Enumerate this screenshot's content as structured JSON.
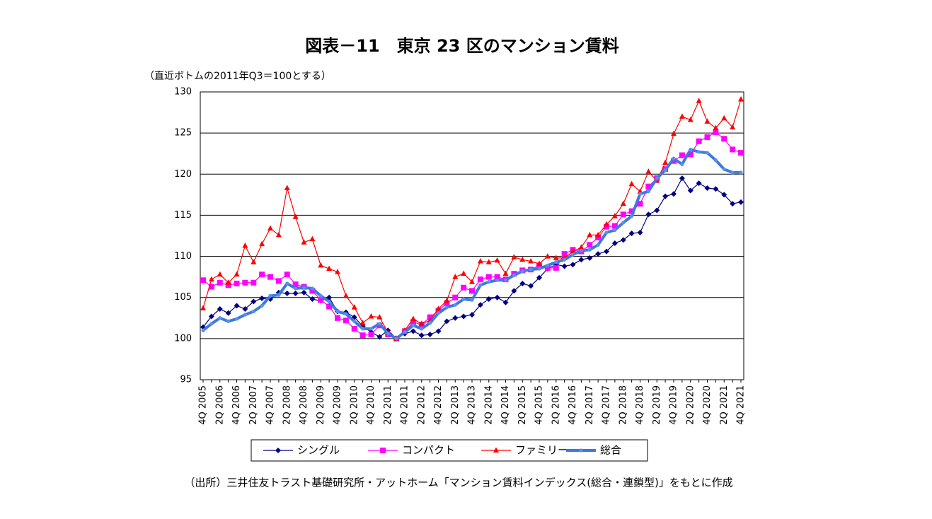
{
  "chart_data": {
    "type": "line",
    "title": "図表－11　東京 23 区のマンション賃料",
    "subtitle": "（直近ボトムの2011年Q3＝100とする）",
    "note": "（出所）三井住友トラスト基礎研究所・アットホーム「マンション賃料インデックス(総合・連鎖型)」をもとに作成",
    "categories": [
      "4Q 2005",
      null,
      "2Q 2006",
      null,
      "4Q 2006",
      null,
      "2Q 2007",
      null,
      "4Q 2007",
      null,
      "2Q 2008",
      null,
      "4Q 2008",
      null,
      "2Q 2009",
      null,
      "4Q 2009",
      null,
      "2Q 2010",
      null,
      "4Q 2010",
      null,
      "2Q 2011",
      null,
      "4Q 2011",
      null,
      "2Q 2012",
      null,
      "4Q 2012",
      null,
      "2Q 2013",
      null,
      "4Q 2013",
      null,
      "2Q 2014",
      null,
      "4Q 2014",
      null,
      "2Q 2015",
      null,
      "4Q 2015",
      null,
      "2Q 2016",
      null,
      "4Q 2016",
      null,
      "2Q 2017",
      null,
      "4Q 2017",
      null,
      "2Q 2018",
      null,
      "4Q 2018",
      null,
      "2Q 2019",
      null,
      "4Q 2019",
      null,
      "2Q 2020",
      null,
      "4Q 2020",
      null,
      "2Q 2021",
      null,
      "4Q 2021"
    ],
    "series": [
      {
        "name": "シングル",
        "color": "#000080",
        "marker": "diamond",
        "values": [
          101.4,
          102.7,
          103.6,
          103.1,
          104.0,
          103.6,
          104.5,
          104.9,
          104.8,
          105.6,
          105.5,
          105.5,
          105.6,
          104.8,
          104.6,
          105.0,
          103.3,
          103.2,
          102.6,
          101.5,
          100.8,
          100.2,
          101.0,
          100.0,
          100.6,
          100.9,
          100.4,
          100.5,
          100.9,
          102.1,
          102.5,
          102.7,
          102.9,
          104.1,
          104.8,
          105.0,
          104.4,
          105.8,
          106.7,
          106.4,
          107.4,
          108.5,
          109.0,
          108.8,
          109.0,
          109.6,
          109.8,
          110.3,
          110.6,
          111.6,
          112.0,
          112.8,
          112.9,
          115.1,
          115.6,
          117.3,
          117.6,
          119.5,
          118.0,
          118.9,
          118.3,
          118.2,
          117.5,
          116.4,
          116.6
        ]
      },
      {
        "name": "コンパクト",
        "color": "#ff00ff",
        "marker": "square",
        "values": [
          107.1,
          106.3,
          106.8,
          106.5,
          106.7,
          106.8,
          106.8,
          107.8,
          107.5,
          107.0,
          107.8,
          106.6,
          106.3,
          105.8,
          104.7,
          103.9,
          102.5,
          102.2,
          101.2,
          100.4,
          100.5,
          101.6,
          100.5,
          100.0,
          100.9,
          102.0,
          101.7,
          102.6,
          103.4,
          104.3,
          105.0,
          106.2,
          105.8,
          107.2,
          107.5,
          107.5,
          107.2,
          107.9,
          108.3,
          108.4,
          108.9,
          108.6,
          108.6,
          110.3,
          110.8,
          110.6,
          111.4,
          112.3,
          113.6,
          113.7,
          115.1,
          115.5,
          116.4,
          118.5,
          119.5,
          120.6,
          121.6,
          122.3,
          122.4,
          124.0,
          124.5,
          125.1,
          124.3,
          123.0,
          122.6
        ]
      },
      {
        "name": "ファミリー",
        "color": "#ff0000",
        "marker": "triangle",
        "values": [
          103.7,
          107.2,
          107.8,
          106.8,
          107.8,
          111.3,
          109.3,
          111.5,
          113.4,
          112.6,
          118.3,
          114.8,
          111.7,
          112.1,
          108.9,
          108.5,
          108.1,
          105.2,
          103.8,
          101.9,
          102.7,
          102.6,
          100.7,
          100.0,
          101.0,
          102.4,
          101.8,
          102.2,
          103.6,
          104.6,
          107.5,
          107.9,
          106.9,
          109.4,
          109.3,
          109.5,
          107.9,
          109.9,
          109.6,
          109.4,
          109.1,
          110.0,
          109.8,
          109.8,
          110.6,
          111.1,
          112.6,
          112.6,
          113.9,
          114.9,
          116.4,
          118.8,
          117.9,
          120.3,
          119.2,
          121.4,
          124.9,
          127.0,
          126.6,
          128.9,
          126.4,
          125.6,
          126.8,
          125.7,
          129.1
        ]
      },
      {
        "name": "総合",
        "color": "#3c78e0",
        "marker": "circle",
        "values": [
          101.0,
          101.8,
          102.5,
          102.1,
          102.4,
          102.9,
          103.3,
          104.0,
          105.2,
          105.3,
          106.7,
          106.1,
          106.2,
          106.1,
          105.2,
          104.5,
          103.3,
          103.0,
          102.1,
          101.2,
          101.2,
          101.8,
          100.6,
          100.0,
          100.8,
          101.6,
          101.2,
          101.9,
          103.1,
          103.8,
          104.1,
          104.8,
          104.7,
          106.5,
          106.9,
          107.1,
          107.1,
          107.7,
          108.2,
          108.4,
          108.5,
          108.9,
          109.3,
          109.6,
          110.2,
          110.7,
          110.8,
          111.4,
          112.9,
          113.2,
          114.1,
          114.9,
          117.6,
          117.9,
          119.5,
          120.5,
          121.9,
          121.2,
          123.0,
          122.7,
          122.6,
          121.7,
          120.6,
          120.2,
          120.2
        ]
      }
    ],
    "ylim": [
      95,
      130
    ],
    "yticks": [
      95,
      100,
      105,
      110,
      115,
      120,
      125,
      130
    ],
    "grid": true,
    "legend": "bottom"
  }
}
